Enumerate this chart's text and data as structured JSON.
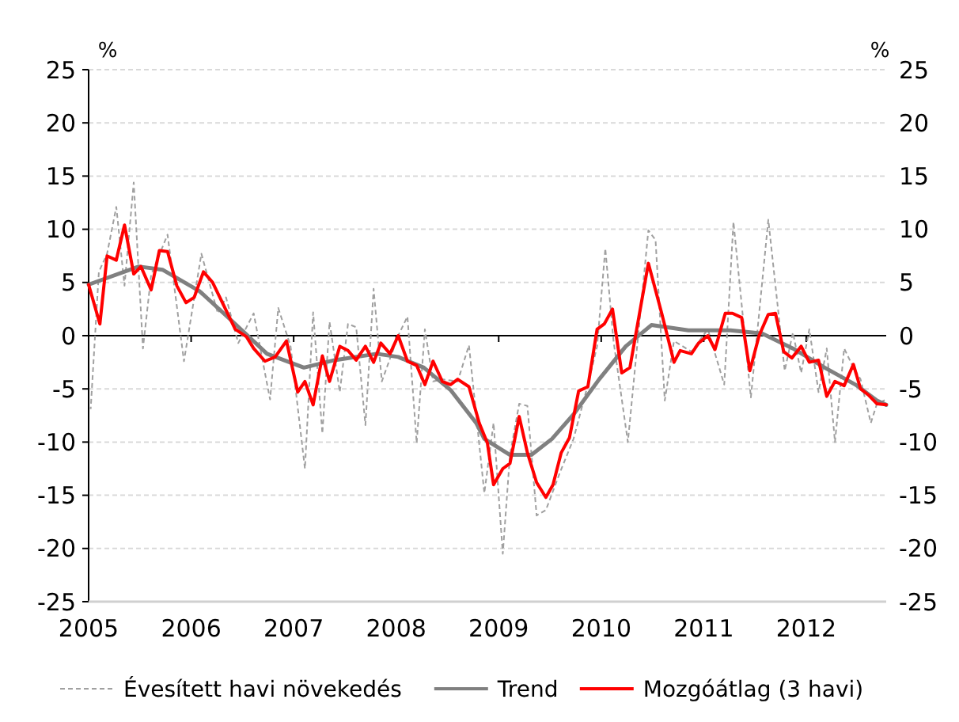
{
  "chart_data": {
    "type": "line",
    "ylabel": "%",
    "y2label": "%",
    "xlim": [
      2005,
      2012.78
    ],
    "xticks": [
      2005,
      2006,
      2007,
      2008,
      2009,
      2010,
      2011,
      2012
    ],
    "ylim": [
      -25,
      25
    ],
    "yticks": [
      -25,
      -20,
      -15,
      -10,
      -5,
      0,
      5,
      10,
      15,
      20,
      25
    ],
    "y2lim": [
      -25,
      25
    ],
    "y2ticks": [
      -25,
      -20,
      -15,
      -10,
      -5,
      0,
      5,
      10,
      15,
      20,
      25
    ],
    "grid": "y",
    "legend": "bottom",
    "marker": "none",
    "ref_lines": [
      {
        "axis": "y",
        "value": 0,
        "color": "#000000"
      }
    ],
    "series": [
      {
        "name": "Évesített havi növekedés",
        "color": "#a0a0a0",
        "line_style": "dashed",
        "x": [
          2005.02,
          2005.1,
          2005.18,
          2005.27,
          2005.35,
          2005.44,
          2005.53,
          2005.61,
          2005.77,
          2005.93,
          2006.1,
          2006.26,
          2006.34,
          2006.46,
          2006.61,
          2006.72,
          2006.77,
          2006.85,
          2006.97,
          2007.11,
          2007.19,
          2007.28,
          2007.35,
          2007.45,
          2007.53,
          2007.61,
          2007.7,
          2007.78,
          2007.86,
          2008.02,
          2008.11,
          2008.2,
          2008.28,
          2008.36,
          2008.45,
          2008.6,
          2008.71,
          2008.86,
          2008.95,
          2009.04,
          2009.11,
          2009.2,
          2009.28,
          2009.37,
          2009.46,
          2009.6,
          2009.73,
          2009.87,
          2009.96,
          2010.04,
          2010.12,
          2010.26,
          2010.46,
          2010.53,
          2010.62,
          2010.71,
          2010.88,
          2011.04,
          2011.2,
          2011.29,
          2011.46,
          2011.63,
          2011.79,
          2011.87,
          2011.95,
          2012.03,
          2012.12,
          2012.2,
          2012.28,
          2012.37,
          2012.46,
          2012.53,
          2012.63,
          2012.69,
          2012.78
        ],
        "values": [
          -6.9,
          6.0,
          7.7,
          12.1,
          4.7,
          14.4,
          -1.2,
          5.7,
          9.5,
          -2.4,
          7.7,
          2.1,
          3.6,
          -0.7,
          2.1,
          -3.5,
          -6.0,
          2.6,
          -1.0,
          -12.5,
          2.2,
          -9.2,
          1.3,
          -5.3,
          1.1,
          0.8,
          -8.4,
          4.4,
          -4.3,
          0.0,
          1.8,
          -10.1,
          0.6,
          -4.3,
          -4.1,
          -4.3,
          -0.9,
          -14.8,
          -8.2,
          -20.5,
          -11.2,
          -6.4,
          -6.6,
          -16.9,
          -16.4,
          -12.8,
          -9.7,
          -4.6,
          -1.0,
          8.2,
          -0.5,
          -10.0,
          9.9,
          9.0,
          -6.1,
          -0.5,
          -1.5,
          0.6,
          -4.6,
          10.7,
          -5.8,
          10.9,
          -3.3,
          0.3,
          -3.5,
          0.6,
          -5.3,
          -1.2,
          -10.0,
          -1.2,
          -3.0,
          -4.1,
          -8.2,
          -6.4,
          -6.0
        ]
      },
      {
        "name": "Trend",
        "color": "#808080",
        "x": [
          2005.0,
          2005.49,
          2005.72,
          2006.08,
          2006.43,
          2006.74,
          2007.1,
          2007.4,
          2007.81,
          2008.02,
          2008.27,
          2008.53,
          2008.78,
          2008.86,
          2009.11,
          2009.32,
          2009.52,
          2009.73,
          2009.98,
          2010.24,
          2010.49,
          2010.85,
          2011.26,
          2011.57,
          2011.87,
          2012.18,
          2012.48,
          2012.69,
          2012.78
        ],
        "values": [
          4.8,
          6.5,
          6.2,
          4.2,
          1.1,
          -1.7,
          -3.0,
          -2.3,
          -1.7,
          -2.0,
          -3.0,
          -5.1,
          -8.2,
          -9.7,
          -11.2,
          -11.2,
          -9.7,
          -7.4,
          -4.1,
          -1.0,
          1.0,
          0.5,
          0.5,
          0.2,
          -1.2,
          -3.0,
          -4.6,
          -6.1,
          -6.5
        ]
      },
      {
        "name": "Mozgóátlag (3 havi)",
        "color": "#ff0000",
        "x": [
          2005.0,
          2005.11,
          2005.18,
          2005.27,
          2005.35,
          2005.44,
          2005.51,
          2005.61,
          2005.69,
          2005.77,
          2005.86,
          2005.95,
          2006.03,
          2006.12,
          2006.21,
          2006.43,
          2006.54,
          2006.61,
          2006.72,
          2006.82,
          2006.93,
          2007.04,
          2007.11,
          2007.19,
          2007.28,
          2007.35,
          2007.45,
          2007.53,
          2007.61,
          2007.7,
          2007.78,
          2007.85,
          2007.94,
          2008.02,
          2008.11,
          2008.2,
          2008.28,
          2008.36,
          2008.45,
          2008.53,
          2008.6,
          2008.71,
          2008.81,
          2008.89,
          2008.95,
          2009.04,
          2009.11,
          2009.2,
          2009.28,
          2009.37,
          2009.46,
          2009.53,
          2009.61,
          2009.69,
          2009.78,
          2009.87,
          2009.96,
          2010.03,
          2010.11,
          2010.2,
          2010.28,
          2010.46,
          2010.59,
          2010.71,
          2010.77,
          2010.88,
          2010.95,
          2011.04,
          2011.11,
          2011.21,
          2011.28,
          2011.37,
          2011.45,
          2011.54,
          2011.63,
          2011.7,
          2011.78,
          2011.86,
          2011.95,
          2012.03,
          2012.12,
          2012.2,
          2012.28,
          2012.37,
          2012.46,
          2012.53,
          2012.61,
          2012.69,
          2012.78
        ],
        "values": [
          4.8,
          1.1,
          7.5,
          7.1,
          10.4,
          5.8,
          6.5,
          4.3,
          8.0,
          7.9,
          4.7,
          3.1,
          3.6,
          6.0,
          5.0,
          0.6,
          -0.1,
          -1.2,
          -2.4,
          -2.0,
          -0.5,
          -5.3,
          -4.3,
          -6.5,
          -1.9,
          -4.3,
          -1.0,
          -1.4,
          -2.3,
          -1.0,
          -2.5,
          -0.7,
          -1.7,
          0.0,
          -2.4,
          -2.8,
          -4.6,
          -2.4,
          -4.3,
          -4.6,
          -4.1,
          -4.8,
          -8.2,
          -10.1,
          -14.0,
          -12.5,
          -12.0,
          -7.6,
          -11.0,
          -13.8,
          -15.2,
          -14.0,
          -11.0,
          -9.6,
          -5.2,
          -4.8,
          0.6,
          1.1,
          2.5,
          -3.5,
          -3.0,
          6.8,
          2.1,
          -2.5,
          -1.4,
          -1.7,
          -0.7,
          0.0,
          -1.3,
          2.1,
          2.1,
          1.7,
          -3.3,
          0.0,
          2.0,
          2.1,
          -1.5,
          -2.1,
          -1.0,
          -2.5,
          -2.3,
          -5.7,
          -4.3,
          -4.7,
          -2.7,
          -5.0,
          -5.6,
          -6.4,
          -6.5
        ]
      }
    ]
  }
}
